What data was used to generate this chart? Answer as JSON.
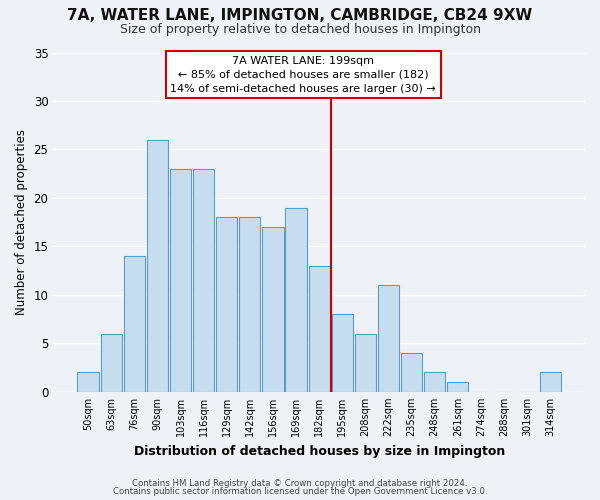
{
  "title": "7A, WATER LANE, IMPINGTON, CAMBRIDGE, CB24 9XW",
  "subtitle": "Size of property relative to detached houses in Impington",
  "xlabel": "Distribution of detached houses by size in Impington",
  "ylabel": "Number of detached properties",
  "bin_labels": [
    "50sqm",
    "63sqm",
    "76sqm",
    "90sqm",
    "103sqm",
    "116sqm",
    "129sqm",
    "142sqm",
    "156sqm",
    "169sqm",
    "182sqm",
    "195sqm",
    "208sqm",
    "222sqm",
    "235sqm",
    "248sqm",
    "261sqm",
    "274sqm",
    "288sqm",
    "301sqm",
    "314sqm"
  ],
  "bar_heights": [
    2,
    6,
    14,
    26,
    23,
    23,
    18,
    18,
    17,
    19,
    13,
    8,
    6,
    11,
    4,
    2,
    1,
    0,
    0,
    0,
    2
  ],
  "bar_color": "#c6ddef",
  "bar_edge_color": "#5b9bc8",
  "highlight_line_color": "#cc0000",
  "ylim": [
    0,
    35
  ],
  "yticks": [
    0,
    5,
    10,
    15,
    20,
    25,
    30,
    35
  ],
  "annotation_title": "7A WATER LANE: 199sqm",
  "annotation_line1": "← 85% of detached houses are smaller (182)",
  "annotation_line2": "14% of semi-detached houses are larger (30) →",
  "annotation_box_color": "#ffffff",
  "annotation_box_edge": "#cc0000",
  "footer_line1": "Contains HM Land Registry data © Crown copyright and database right 2024.",
  "footer_line2": "Contains public sector information licensed under the Open Government Licence v3.0.",
  "background_color": "#eef2f7",
  "grid_color": "#ffffff",
  "title_fontsize": 11,
  "subtitle_fontsize": 9
}
